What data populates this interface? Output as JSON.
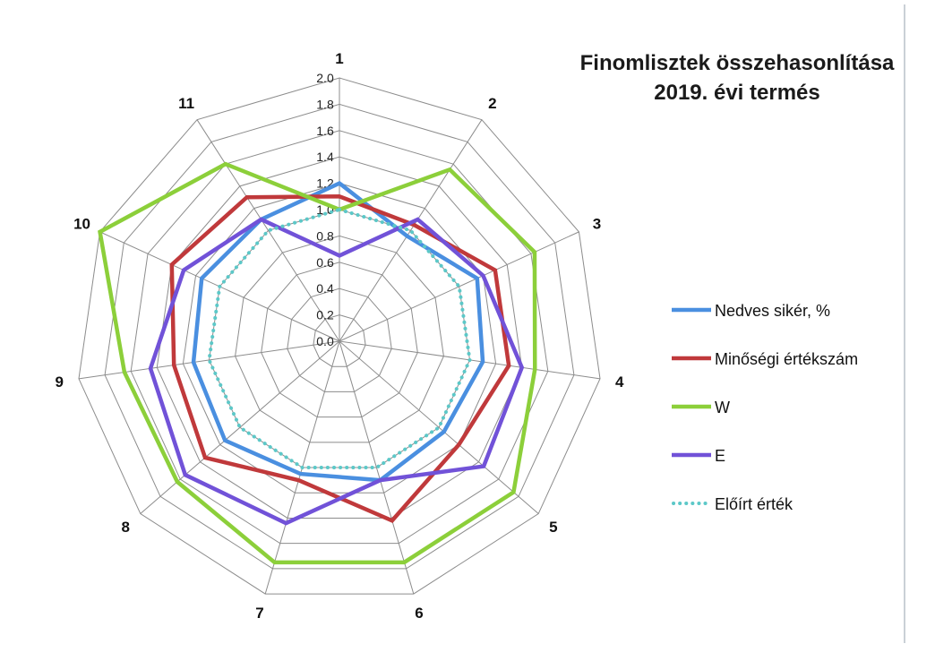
{
  "chart_data": {
    "type": "radar",
    "title": [
      "Finomlisztek összehasonlítása",
      "2019. évi termés"
    ],
    "categories": [
      "1",
      "2",
      "3",
      "4",
      "5",
      "6",
      "7",
      "8",
      "9",
      "10",
      "11"
    ],
    "rlim": [
      0,
      2.0
    ],
    "ticks": [
      "0.0",
      "0.2",
      "0.4",
      "0.6",
      "0.8",
      "1.0",
      "1.2",
      "1.4",
      "1.6",
      "1.8",
      "2.0"
    ],
    "legend_position": "right",
    "grid": true,
    "series": [
      {
        "name": "Nedves sikér, %",
        "color": "#4a8fe0",
        "dash": "solid",
        "values": [
          1.2,
          0.95,
          1.15,
          1.1,
          1.05,
          1.1,
          1.05,
          1.15,
          1.12,
          1.15,
          1.1
        ]
      },
      {
        "name": "Minőségi értékszám",
        "color": "#c0393b",
        "dash": "solid",
        "values": [
          1.1,
          1.05,
          1.3,
          1.3,
          1.2,
          1.42,
          1.1,
          1.35,
          1.27,
          1.4,
          1.3
        ]
      },
      {
        "name": "W",
        "color": "#8ccf3a",
        "dash": "solid",
        "values": [
          1.0,
          1.55,
          1.63,
          1.5,
          1.75,
          1.75,
          1.75,
          1.63,
          1.65,
          2.0,
          1.6
        ]
      },
      {
        "name": "E",
        "color": "#7152d8",
        "dash": "solid",
        "values": [
          0.65,
          1.1,
          1.2,
          1.4,
          1.45,
          1.1,
          1.44,
          1.55,
          1.45,
          1.3,
          1.1
        ]
      },
      {
        "name": "Előírt érték",
        "color": "#5cc8c8",
        "dash": "dotted",
        "values": [
          1.0,
          1.0,
          1.0,
          1.0,
          1.0,
          1.0,
          1.0,
          1.0,
          1.0,
          1.0,
          1.0
        ]
      }
    ]
  }
}
